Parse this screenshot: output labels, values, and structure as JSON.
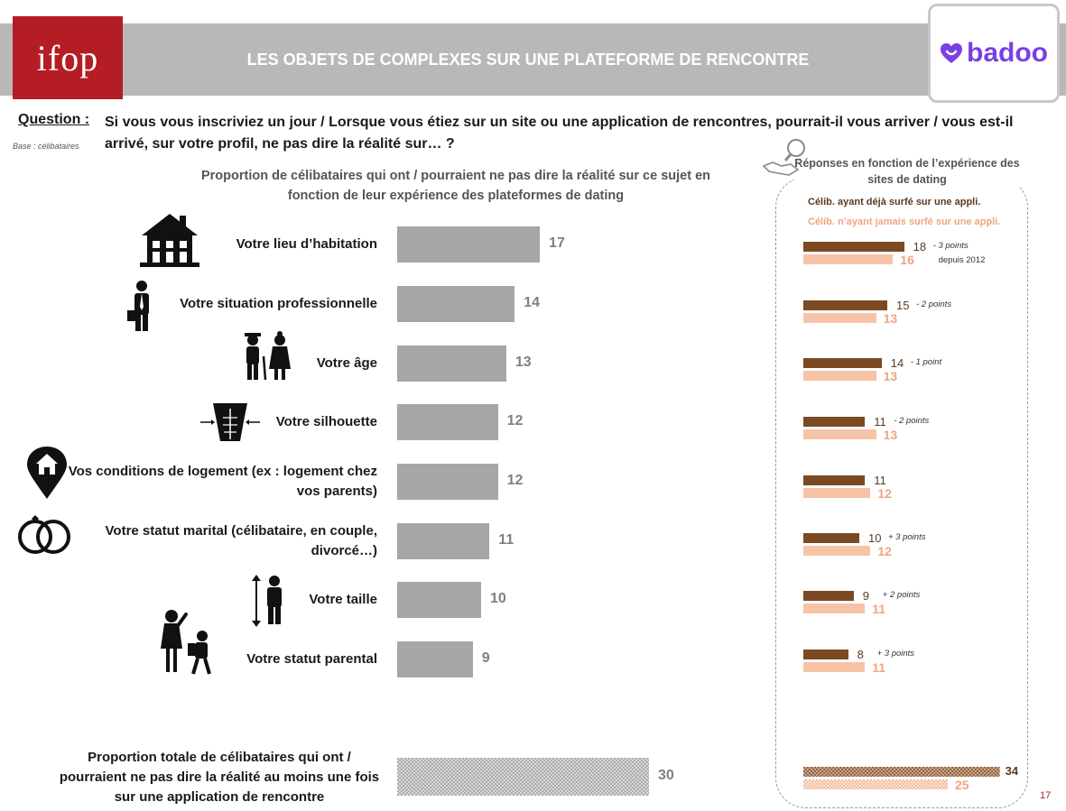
{
  "header": {
    "logo_left": "ifop",
    "title": "LES OBJETS DE COMPLEXES SUR UNE PLATEFORME DE RENCONTRE",
    "logo_right": "badoo",
    "brand_colors": {
      "ifop": "#b31d23",
      "badoo": "#7b3fe4",
      "band": "#b8b8b8"
    }
  },
  "question": {
    "label": "Question :",
    "text": "Si vous vous inscriviez un jour / Lorsque vous étiez sur un site ou une application de rencontres, pourrait-il vous arriver / vous est-il arrivé, sur votre profil, ne pas dire la réalité sur… ?",
    "base": "Base : célibataires"
  },
  "page_number": "17",
  "chart_data": [
    {
      "type": "bar",
      "orientation": "horizontal",
      "title": "Proportion de célibataires qui ont / pourraient ne pas dire la réalité sur ce sujet en fonction de leur expérience des plateformes de dating",
      "categories": [
        "Votre lieu d’habitation",
        "Votre situation professionnelle",
        "Votre âge",
        "Votre silhouette",
        "Vos conditions de logement (ex : logement chez vos parents)",
        "Votre statut marital (célibataire, en couple, divorcé…)",
        "Votre taille",
        "Votre statut parental"
      ],
      "values": [
        17,
        14,
        13,
        12,
        12,
        11,
        10,
        9
      ],
      "total": {
        "label": "Proportion totale de célibataires qui ont / pourraient ne pas dire la réalité au moins une fois sur une application de rencontre",
        "value": 30
      },
      "color": "#a6a6a6",
      "icons": [
        "house-icon",
        "businessman-icon",
        "elderly-couple-icon",
        "torso-icon",
        "home-pin-icon",
        "wedding-rings-icon",
        "height-person-icon",
        "parent-child-icon"
      ]
    },
    {
      "type": "bar",
      "orientation": "horizontal",
      "title": "Réponses en fonction de l’expérience des sites de dating",
      "series": [
        {
          "name": "Célib. ayant déjà surfé sur une appli.",
          "values": [
            18,
            15,
            14,
            11,
            11,
            10,
            9,
            8
          ],
          "total": 34,
          "color": "#7b4a22"
        },
        {
          "name": "Célib. n’ayant jamais surfé sur une appli.",
          "values": [
            16,
            13,
            13,
            13,
            12,
            12,
            11,
            11
          ],
          "total": 25,
          "color": "#f7c3a6"
        }
      ],
      "deltas": [
        "- 3 points",
        "- 2 points",
        "- 1 point",
        "- 2 points",
        "",
        "+ 3 points",
        "+ 2 points",
        "+ 3 points"
      ],
      "delta_note": "depuis 2012"
    }
  ]
}
